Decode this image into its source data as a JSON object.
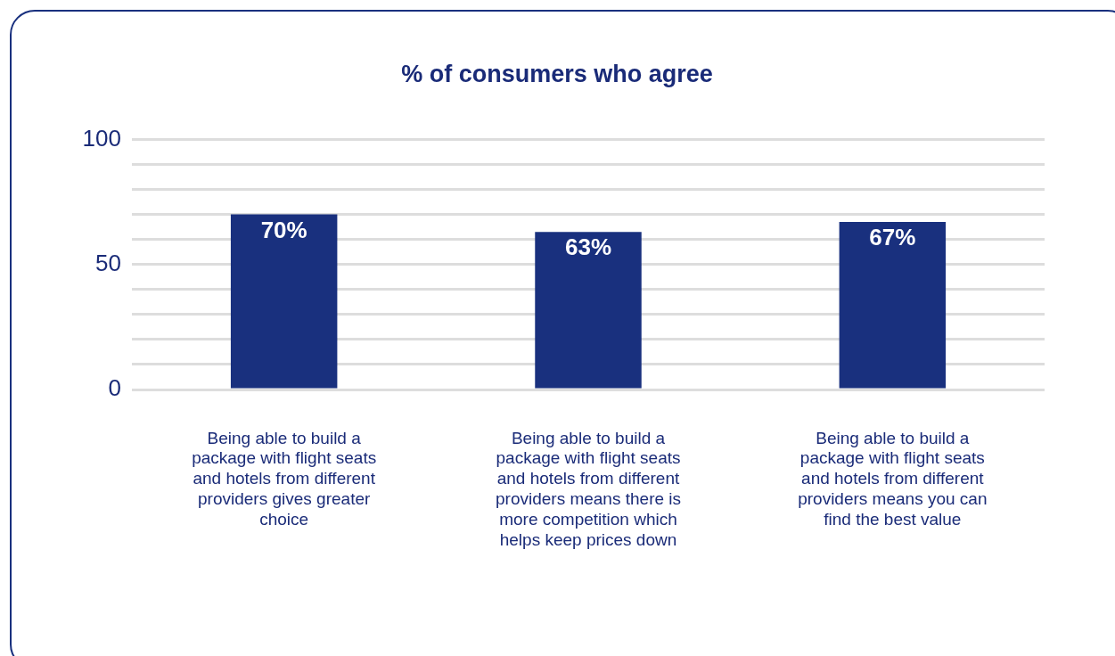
{
  "chart_data": {
    "type": "bar",
    "title": "% of consumers who agree",
    "categories": [
      "Being able to build a package with flight seats and hotels from different providers gives greater choice",
      "Being able to build a package with flight seats and hotels from different providers means there is more competition which helps keep prices down",
      "Being able to build a package with flight seats and hotels from different providers means you can find the best value"
    ],
    "values": [
      70,
      63,
      67
    ],
    "value_labels": [
      "70%",
      "63%",
      "67%"
    ],
    "color": "#19307e",
    "ylim": [
      0,
      100
    ],
    "yticks": [
      0,
      {
        "value": 10,
        "label": null
      },
      {
        "value": 20,
        "label": null
      },
      {
        "value": 30,
        "label": null
      },
      {
        "value": 40,
        "label": null
      },
      50,
      {
        "value": 60,
        "label": null
      },
      {
        "value": 70,
        "label": null
      },
      {
        "value": 80,
        "label": null
      },
      {
        "value": 90,
        "label": null
      },
      100
    ],
    "grid": "y"
  }
}
